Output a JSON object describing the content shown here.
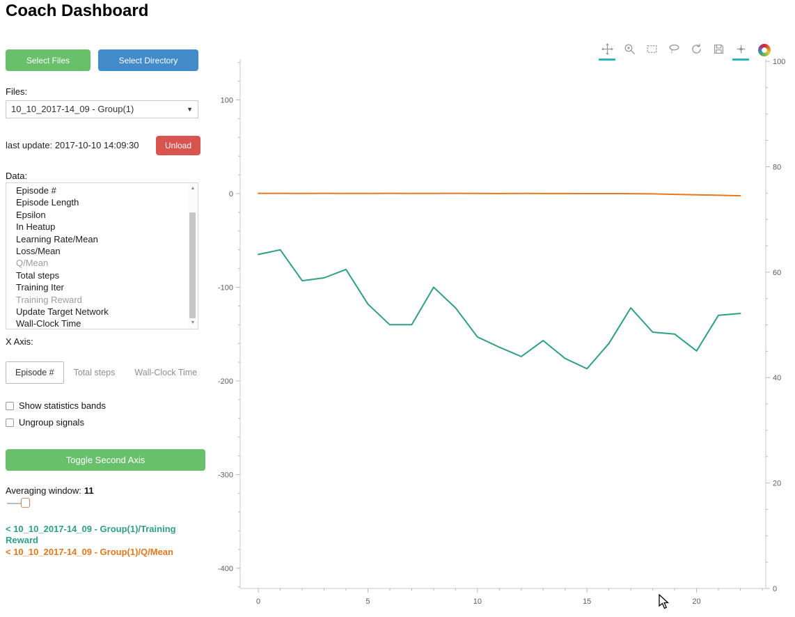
{
  "title": "Coach Dashboard",
  "colors": {
    "button_green": "#68c06a",
    "button_blue": "#428bca",
    "button_red": "#d9534f",
    "series_teal": "#2d9e88",
    "series_orange": "#e8761c",
    "active_tool_underline": "#2fb0c6"
  },
  "icons": {
    "dropdown_caret": "▼",
    "scroll_up": "▲",
    "scroll_down": "▼"
  },
  "sidebar": {
    "select_files_label": "Select Files",
    "select_directory_label": "Select Directory",
    "files_label": "Files:",
    "file_dropdown_value": "10_10_2017-14_09 - Group(1)",
    "last_update_text": "last update: 2017-10-10 14:09:30",
    "unload_label": "Unload",
    "data_label": "Data:",
    "data_list": {
      "items": [
        {
          "label": "Episode #",
          "dimmed": false
        },
        {
          "label": "Episode Length",
          "dimmed": false
        },
        {
          "label": "Epsilon",
          "dimmed": false
        },
        {
          "label": "In Heatup",
          "dimmed": false
        },
        {
          "label": "Learning Rate/Mean",
          "dimmed": false
        },
        {
          "label": "Loss/Mean",
          "dimmed": false
        },
        {
          "label": "Q/Mean",
          "dimmed": true
        },
        {
          "label": "Total steps",
          "dimmed": false
        },
        {
          "label": "Training Iter",
          "dimmed": false
        },
        {
          "label": "Training Reward",
          "dimmed": true
        },
        {
          "label": "Update Target Network",
          "dimmed": false
        },
        {
          "label": "Wall-Clock Time",
          "dimmed": false
        }
      ]
    },
    "x_axis_label": "X Axis:",
    "x_axis_options": [
      {
        "label": "Episode #",
        "active": true
      },
      {
        "label": "Total steps",
        "active": false
      },
      {
        "label": "Wall-Clock Time",
        "active": false
      }
    ],
    "checkboxes": [
      {
        "label": "Show statistics bands",
        "checked": false
      },
      {
        "label": "Ungroup signals",
        "checked": false
      }
    ],
    "toggle_second_axis_label": "Toggle Second Axis",
    "averaging_window_label": "Averaging window:",
    "averaging_window_value": "11"
  },
  "legend": {
    "entries": [
      {
        "text": "< 10_10_2017-14_09 - Group(1)/Training Reward",
        "color": "#2d9e88"
      },
      {
        "text": "< 10_10_2017-14_09 - Group(1)/Q/Mean",
        "color": "#e8761c"
      }
    ]
  },
  "plot_toolbar": {
    "tools": [
      {
        "name": "pan",
        "active": true
      },
      {
        "name": "box-zoom",
        "active": false
      },
      {
        "name": "box-select",
        "active": false
      },
      {
        "name": "lasso-select",
        "active": false
      },
      {
        "name": "reset",
        "active": false
      },
      {
        "name": "save",
        "active": false
      },
      {
        "name": "hover",
        "active": true
      }
    ],
    "logo": "bokeh"
  },
  "chart_data": {
    "type": "line",
    "title": "",
    "xlabel": "",
    "ylabel": "",
    "grid": false,
    "legend_position": "sidebar-bottom-left",
    "x": [
      0,
      1,
      2,
      3,
      4,
      5,
      6,
      7,
      8,
      9,
      10,
      11,
      12,
      13,
      14,
      15,
      16,
      17,
      18,
      19,
      20,
      21,
      22
    ],
    "series": [
      {
        "name": "10_10_2017-14_09 - Group(1)/Training Reward",
        "color": "#2d9e88",
        "axis": "left",
        "values": [
          -65,
          -60,
          -93,
          -90,
          -81,
          -118,
          -140,
          -140,
          -100,
          -122,
          -153,
          -164,
          -174,
          -157,
          -176,
          -187,
          -160,
          -122,
          -148,
          -150,
          -168,
          -130,
          -128
        ]
      },
      {
        "name": "10_10_2017-14_09 - Group(1)/Q/Mean",
        "color": "#e8761c",
        "axis": "left",
        "values": [
          0.3,
          0.3,
          0.2,
          0.3,
          0.2,
          0.2,
          0.3,
          0.2,
          0.2,
          0.3,
          0.2,
          0.1,
          0.2,
          0.1,
          0.1,
          0.0,
          0.0,
          -0.1,
          -0.3,
          -0.8,
          -1.3,
          -1.8,
          -2.3
        ]
      }
    ],
    "x_axis": {
      "ticks": [
        0,
        5,
        10,
        15,
        20
      ],
      "range": [
        -0.83,
        23.16
      ]
    },
    "left_y_axis": {
      "ticks": [
        100,
        0,
        -100,
        -200,
        -300,
        -400
      ],
      "range": [
        -421.6,
        143.5
      ]
    },
    "right_y_axis": {
      "ticks": [
        0,
        20,
        40,
        60,
        80,
        100
      ],
      "range": [
        0,
        100.4
      ]
    }
  }
}
